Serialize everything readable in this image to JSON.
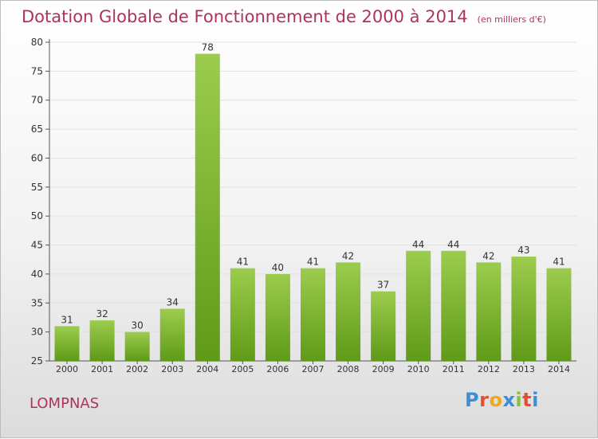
{
  "title": "Dotation Globale de Fonctionnement de 2000 à 2014",
  "subtitle": "(en milliers d'€)",
  "place": "LOMPNAS",
  "logo": {
    "letters": [
      "P",
      "r",
      "o",
      "x",
      "i",
      "t",
      "i"
    ]
  },
  "colors": {
    "title": "#b0325c",
    "bar_top": "#9ccc4e",
    "bar_bottom": "#5f9a18"
  },
  "chart_data": {
    "type": "bar",
    "categories": [
      "2000",
      "2001",
      "2002",
      "2003",
      "2004",
      "2005",
      "2006",
      "2007",
      "2008",
      "2009",
      "2010",
      "2011",
      "2012",
      "2013",
      "2014"
    ],
    "values": [
      31,
      32,
      30,
      34,
      78,
      41,
      40,
      41,
      42,
      37,
      44,
      44,
      42,
      43,
      41
    ],
    "ylim": [
      25,
      80
    ],
    "yticks": [
      25,
      30,
      35,
      40,
      45,
      50,
      55,
      60,
      65,
      70,
      75,
      80
    ],
    "grid": true,
    "xlabel": "",
    "ylabel": ""
  }
}
